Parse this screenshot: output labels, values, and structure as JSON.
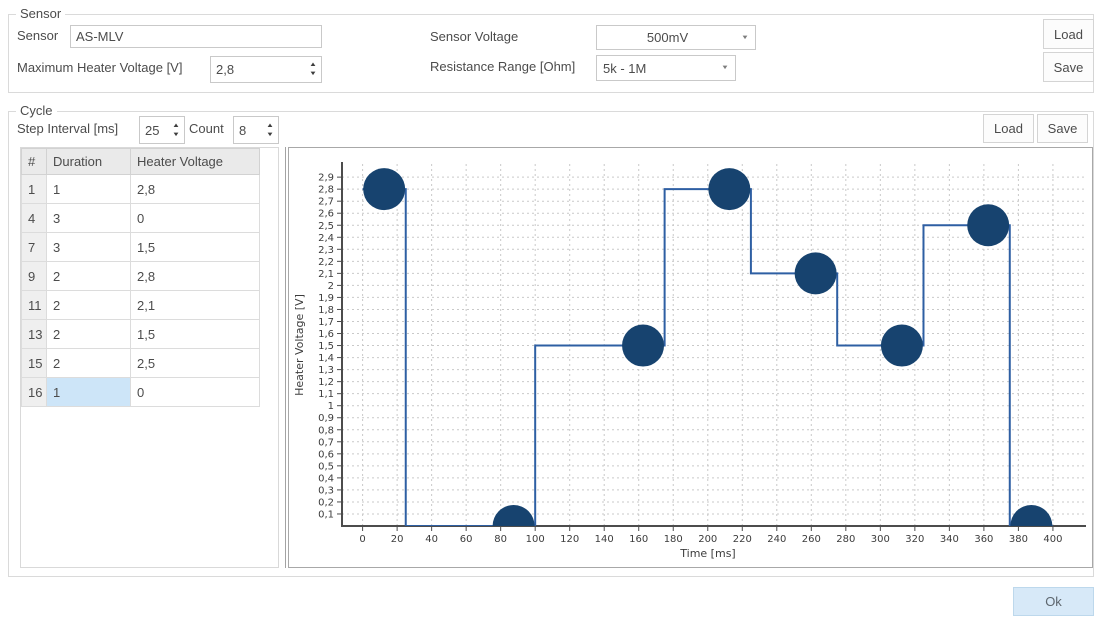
{
  "icons": {
    "spin_up": "▲",
    "spin_down": "▼",
    "dropdown": "▼"
  },
  "sensor": {
    "group_title": "Sensor",
    "name_label": "Sensor",
    "name_value": "AS-MLV",
    "max_heater_label": "Maximum Heater Voltage [V]",
    "max_heater_value": "2,8",
    "voltage_label": "Sensor Voltage",
    "voltage_value": "500mV",
    "resistance_label": "Resistance Range [Ohm]",
    "resistance_value": "5k - 1M",
    "load": "Load",
    "save": "Save"
  },
  "cycle": {
    "group_title": "Cycle",
    "step_interval_label": "Step Interval [ms]",
    "step_interval_value": "25",
    "count_label": "Count",
    "count_value": "8",
    "load": "Load",
    "save": "Save",
    "table": {
      "columns": [
        "#",
        "Duration",
        "Heater Voltage"
      ],
      "rows": [
        [
          "1",
          "1",
          "2,8"
        ],
        [
          "4",
          "3",
          "0"
        ],
        [
          "7",
          "3",
          "1,5"
        ],
        [
          "9",
          "2",
          "2,8"
        ],
        [
          "11",
          "2",
          "2,1"
        ],
        [
          "13",
          "2",
          "1,5"
        ],
        [
          "15",
          "2",
          "2,5"
        ],
        [
          "16",
          "1",
          "0"
        ]
      ],
      "selected_cell": {
        "row_index": 7,
        "column": "Duration"
      }
    }
  },
  "chart_data": {
    "type": "line",
    "line_style": "step",
    "title": "",
    "xlabel": "Time [ms]",
    "ylabel": "Heater Voltage [V]",
    "xlim": [
      -12,
      419
    ],
    "ylim": [
      0,
      2.95
    ],
    "grid": true,
    "step_interval_ms": 25,
    "x_ticks": [
      0,
      20,
      40,
      60,
      80,
      100,
      120,
      140,
      160,
      180,
      200,
      220,
      240,
      260,
      280,
      300,
      320,
      340,
      360,
      380,
      400
    ],
    "y_tick_values": [
      0.1,
      0.2,
      0.3,
      0.4,
      0.5,
      0.6,
      0.7,
      0.8,
      0.9,
      1.0,
      1.1,
      1.2,
      1.3,
      1.4,
      1.5,
      1.6,
      1.7,
      1.8,
      1.9,
      2.0,
      2.1,
      2.2,
      2.3,
      2.4,
      2.5,
      2.6,
      2.7,
      2.8,
      2.9
    ],
    "y_tick_labels": [
      "0,1",
      "0,2",
      "0,3",
      "0,4",
      "0,5",
      "0,6",
      "0,7",
      "0,8",
      "0,9",
      "1",
      "1,1",
      "1,2",
      "1,3",
      "1,4",
      "1,5",
      "1,6",
      "1,7",
      "1,8",
      "1,9",
      "2",
      "2,1",
      "2,2",
      "2,3",
      "2,4",
      "2,5",
      "2,6",
      "2,7",
      "2,8",
      "2,9"
    ],
    "series": [
      {
        "name": "Heater Voltage",
        "steps": [
          {
            "t_start": 0,
            "t_end": 25,
            "value": 2.8
          },
          {
            "t_start": 25,
            "t_end": 100,
            "value": 0
          },
          {
            "t_start": 100,
            "t_end": 175,
            "value": 1.5
          },
          {
            "t_start": 175,
            "t_end": 225,
            "value": 2.8
          },
          {
            "t_start": 225,
            "t_end": 275,
            "value": 2.1
          },
          {
            "t_start": 275,
            "t_end": 325,
            "value": 1.5
          },
          {
            "t_start": 325,
            "t_end": 375,
            "value": 2.5
          },
          {
            "t_start": 375,
            "t_end": 400,
            "value": 0
          }
        ],
        "markers": [
          {
            "t": 12.5,
            "value": 2.8
          },
          {
            "t": 87.5,
            "value": 0
          },
          {
            "t": 162.5,
            "value": 1.5
          },
          {
            "t": 212.5,
            "value": 2.8
          },
          {
            "t": 262.5,
            "value": 2.1
          },
          {
            "t": 312.5,
            "value": 1.5
          },
          {
            "t": 362.5,
            "value": 2.5
          },
          {
            "t": 387.5,
            "value": 0
          }
        ]
      }
    ],
    "marker_radius": 21,
    "colors": {
      "line": "#2e5fa3",
      "marker": "#17436f",
      "grid": "#c9c9c9",
      "axis": "#4c4c4c"
    }
  },
  "footer": {
    "ok": "Ok"
  }
}
